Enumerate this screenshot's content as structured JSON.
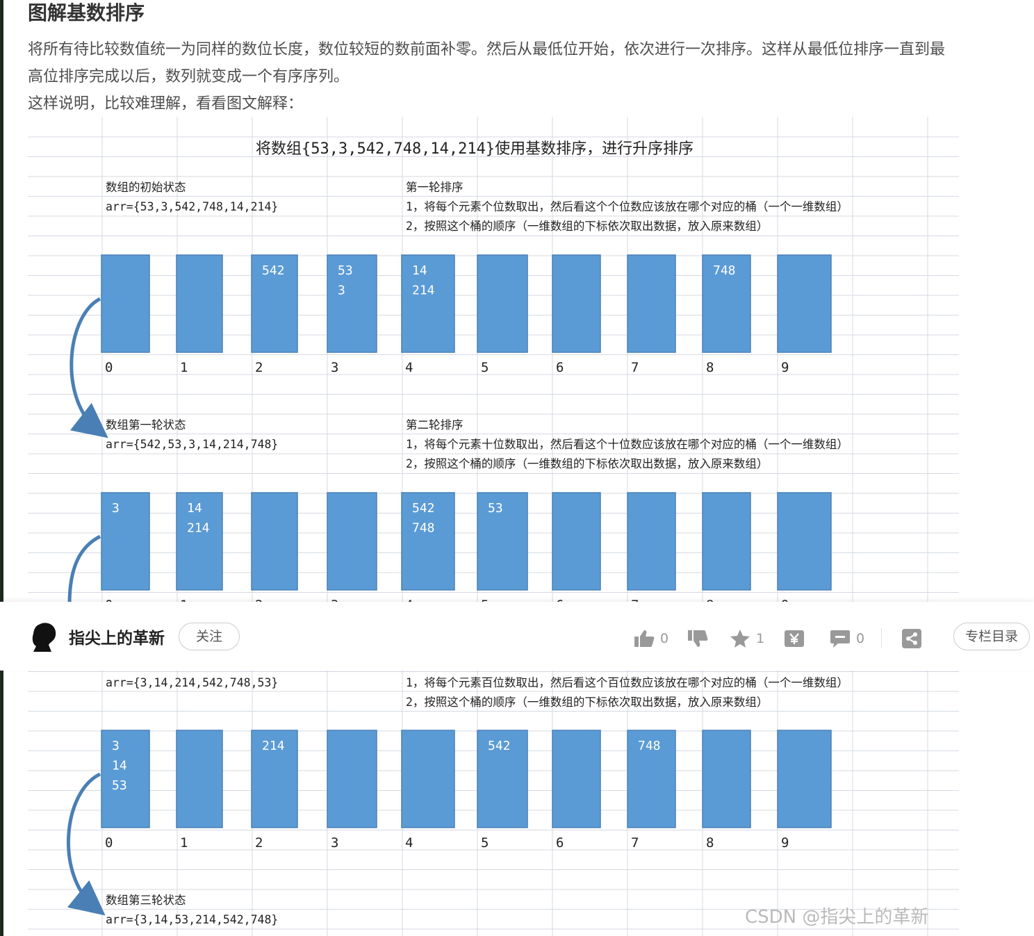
{
  "article": {
    "heading": "图解基数排序",
    "para1_line1": "将所有待比较数值统一为同样的数位长度，数位较短的数前面补零。然后从最低位开始，依次进行一次排序。这样从最低位排序一直到最",
    "para1_line2": "高位排序完成以后，数列就变成一个有序序列。",
    "para2": "这样说明，比较难理解，看看图文解释："
  },
  "diagram": {
    "title": "将数组{53,3,542,748,14,214}使用基数排序，进行升序排序",
    "initial_label": "数组的初始状态",
    "initial_arr": "arr={53,3,542,748,14,214}",
    "round1_title": "第一轮排序",
    "round1_step1": "1，将每个元素个位数取出，然后看这个个位数应该放在哪个对应的桶（一个一维数组）",
    "round1_step2": "2，按照这个桶的顺序（一维数组的下标依次取出数据，放入原来数组）",
    "state1_label": "数组第一轮状态",
    "state1_arr": "arr={542,53,3,14,214,748}",
    "round2_title": "第二轮排序",
    "round2_step1": "1，将每个元素十位数取出，然后看这个十位数应该放在哪个对应的桶（一个一维数组）",
    "round2_step2": "2，按照这个桶的顺序（一维数组的下标依次取出数据，放入原来数组）",
    "state2_arr": "arr={3,14,214,542,748,53}",
    "round3_step1": "1，将每个元素百位数取出，然后看这个百位数应该放在哪个对应的桶（一个一维数组）",
    "round3_step2": "2，按照这个桶的顺序（一维数组的下标依次取出数据，放入原来数组）",
    "state3_label": "数组第三轮状态",
    "state3_arr": "arr={3,14,53,214,542,748}",
    "bucket_indices": [
      "0",
      "1",
      "2",
      "3",
      "4",
      "5",
      "6",
      "7",
      "8",
      "9"
    ],
    "round1_buckets": [
      [],
      [],
      [
        "542"
      ],
      [
        "53",
        "3"
      ],
      [
        "14",
        "214"
      ],
      [],
      [],
      [],
      [
        "748"
      ],
      []
    ],
    "round2_buckets": [
      [
        "3"
      ],
      [
        "14",
        "214"
      ],
      [],
      [],
      [
        "542",
        "748"
      ],
      [
        "53"
      ],
      [],
      [],
      [],
      []
    ],
    "round3_buckets": [
      [
        "3",
        "14",
        "53"
      ],
      [],
      [
        "214"
      ],
      [],
      [],
      [
        "542"
      ],
      [],
      [
        "748"
      ],
      [],
      []
    ],
    "watermark": "CSDN @指尖上的革新",
    "bucket_color": "#5b9bd5"
  },
  "author_bar": {
    "author_name": "指尖上的革新",
    "follow_label": "关注",
    "like_count": "0",
    "favorite_count": "1",
    "comment_count": "0",
    "column_label": "专栏目录"
  }
}
